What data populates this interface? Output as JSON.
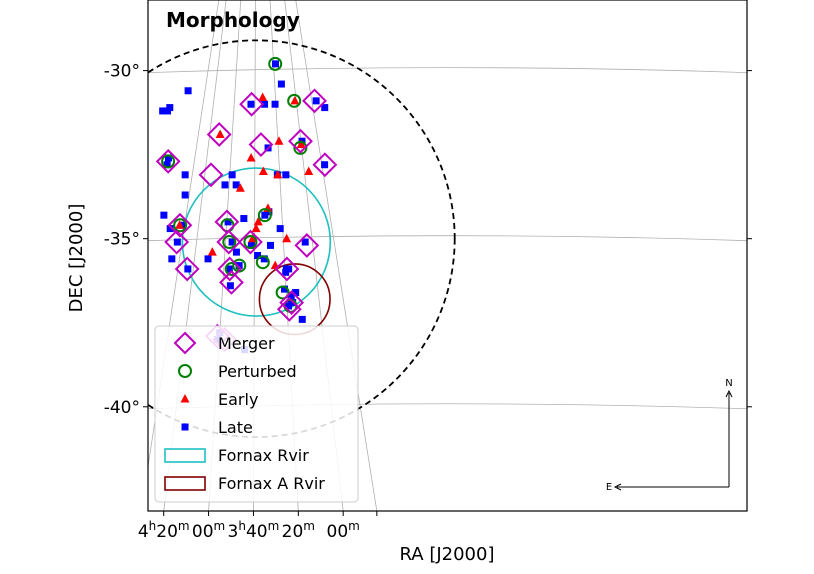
{
  "chart_data": {
    "type": "scatter",
    "title": "Morphology",
    "xlabel": "RA [J2000]",
    "ylabel": "DEC [J2000]",
    "xlim": [
      0.0,
      4.45
    ],
    "ylim": [
      -43.1,
      -27.9
    ],
    "grid": true,
    "x_ticks": [
      {
        "value": 4.3333,
        "label_main": "4",
        "label_sup": "h",
        "label_rest": "20",
        "label_sup2": "m"
      },
      {
        "value": 4.0,
        "label_main": "00",
        "label_sup": "m",
        "label_rest": "",
        "label_sup2": ""
      },
      {
        "value": 3.6667,
        "label_main": "3",
        "label_sup": "h",
        "label_rest": "40",
        "label_sup2": "m"
      },
      {
        "value": 3.3333,
        "label_main": "20",
        "label_sup": "m",
        "label_rest": "",
        "label_sup2": ""
      },
      {
        "value": 3.0,
        "label_main": "00",
        "label_sup": "m",
        "label_rest": "",
        "label_sup2": ""
      }
    ],
    "y_ticks": [
      {
        "value": -30,
        "label": "-30°"
      },
      {
        "value": -35,
        "label": "-35°"
      },
      {
        "value": -40,
        "label": "-40°"
      }
    ],
    "compass": {
      "north": "N",
      "east": "E"
    },
    "legend": {
      "position": "bottom-left",
      "entries": [
        {
          "label": "Merger",
          "marker": "diamond",
          "color": "#bf00bf"
        },
        {
          "label": "Perturbed",
          "marker": "circle",
          "color": "#008000"
        },
        {
          "label": "Early",
          "marker": "triangle",
          "color": "#ff0000"
        },
        {
          "label": "Late",
          "marker": "square",
          "color": "#0000ff"
        },
        {
          "label": "Fornax Rvir",
          "marker": "circle-patch",
          "color": "#20c0c0"
        },
        {
          "label": "Fornax A Rvir",
          "marker": "circle-patch",
          "color": "#800000"
        }
      ]
    },
    "regions": [
      {
        "name": "Fornax Rvir",
        "center": [
          3.645,
          -35.1
        ],
        "radius_deg": 2.2,
        "color": "#20c0c0",
        "style": "solid"
      },
      {
        "name": "Fornax A Rvir",
        "center": [
          3.36,
          -36.8
        ],
        "radius_deg": 1.05,
        "color": "#800000",
        "style": "solid"
      },
      {
        "name": "outer boundary",
        "center": [
          3.645,
          -35.0
        ],
        "radius_deg": 5.9,
        "color": "#000000",
        "style": "dashed"
      }
    ],
    "series": [
      {
        "name": "Late",
        "marker": "square",
        "color": "#0000ff",
        "points": [
          [
            4.341,
            -31.2
          ],
          [
            4.305,
            -31.2
          ],
          [
            4.288,
            -31.1
          ],
          [
            4.152,
            -30.6
          ],
          [
            4.308,
            -32.8
          ],
          [
            4.298,
            -32.6
          ],
          [
            4.332,
            -34.3
          ],
          [
            4.285,
            -34.7
          ],
          [
            4.273,
            -35.6
          ],
          [
            4.232,
            -35.1
          ],
          [
            4.195,
            -34.6
          ],
          [
            4.174,
            -33.7
          ],
          [
            4.174,
            -33.1
          ],
          [
            4.154,
            -35.9
          ],
          [
            4.004,
            -35.6
          ],
          [
            3.878,
            -33.4
          ],
          [
            3.825,
            -33.1
          ],
          [
            3.795,
            -33.4
          ],
          [
            3.855,
            -34.5
          ],
          [
            3.825,
            -35.1
          ],
          [
            3.793,
            -35.4
          ],
          [
            3.773,
            -35.8
          ],
          [
            3.846,
            -35.9
          ],
          [
            3.838,
            -36.4
          ],
          [
            3.738,
            -34.4
          ],
          [
            3.682,
            -35.2
          ],
          [
            3.685,
            -31.0
          ],
          [
            3.584,
            -31.0
          ],
          [
            3.506,
            -31.0
          ],
          [
            3.459,
            -30.4
          ],
          [
            3.558,
            -32.3
          ],
          [
            3.552,
            -34.2
          ],
          [
            3.582,
            -34.3
          ],
          [
            3.54,
            -35.2
          ],
          [
            3.468,
            -34.7
          ],
          [
            3.586,
            -35.6
          ],
          [
            3.636,
            -35.5
          ],
          [
            3.489,
            -33.1
          ],
          [
            3.426,
            -33.1
          ],
          [
            3.503,
            -29.8
          ],
          [
            3.436,
            -36.5
          ],
          [
            3.427,
            -36.0
          ],
          [
            3.422,
            -35.9
          ],
          [
            3.405,
            -35.9
          ],
          [
            3.387,
            -36.7
          ],
          [
            3.387,
            -36.8
          ],
          [
            3.375,
            -36.9
          ],
          [
            3.353,
            -36.6
          ],
          [
            3.406,
            -37.0
          ],
          [
            3.304,
            -37.4
          ],
          [
            3.306,
            -32.1
          ],
          [
            3.282,
            -35.1
          ],
          [
            3.201,
            -30.9
          ],
          [
            3.137,
            -31.1
          ],
          [
            3.138,
            -32.8
          ],
          [
            3.732,
            -38.3
          ],
          [
            3.934,
            -38.0
          ],
          [
            3.917,
            -37.8
          ]
        ]
      },
      {
        "name": "Early",
        "marker": "triangle",
        "color": "#ff0000",
        "points": [
          [
            4.215,
            -34.6
          ],
          [
            3.972,
            -35.4
          ],
          [
            3.914,
            -31.9
          ],
          [
            3.764,
            -33.5
          ],
          [
            3.684,
            -32.6
          ],
          [
            3.673,
            -35.0
          ],
          [
            3.647,
            -34.7
          ],
          [
            3.631,
            -34.5
          ],
          [
            3.598,
            -30.8
          ],
          [
            3.593,
            -33.0
          ],
          [
            3.559,
            -34.1
          ],
          [
            3.505,
            -35.8
          ],
          [
            3.486,
            -33.1
          ],
          [
            3.477,
            -32.1
          ],
          [
            3.42,
            -35.0
          ],
          [
            3.359,
            -30.9
          ],
          [
            3.312,
            -32.2
          ],
          [
            3.256,
            -33.0
          ]
        ]
      },
      {
        "name": "Perturbed",
        "marker": "circle",
        "color": "#008000",
        "points": [
          [
            4.301,
            -32.7
          ],
          [
            4.211,
            -34.6
          ],
          [
            3.86,
            -34.6
          ],
          [
            3.846,
            -35.1
          ],
          [
            3.828,
            -35.9
          ],
          [
            3.772,
            -35.8
          ],
          [
            3.689,
            -35.1
          ],
          [
            3.597,
            -35.7
          ],
          [
            3.582,
            -34.3
          ],
          [
            3.505,
            -29.8
          ],
          [
            3.45,
            -36.6
          ],
          [
            3.364,
            -30.9
          ],
          [
            3.318,
            -32.3
          ],
          [
            3.392,
            -37.0
          ]
        ]
      },
      {
        "name": "Merger",
        "marker": "diamond",
        "color": "#bf00bf",
        "points": [
          [
            4.3,
            -32.7
          ],
          [
            4.237,
            -35.1
          ],
          [
            4.213,
            -34.6
          ],
          [
            4.159,
            -35.9
          ],
          [
            3.982,
            -33.1
          ],
          [
            3.921,
            -31.9
          ],
          [
            3.864,
            -34.5
          ],
          [
            3.85,
            -35.1
          ],
          [
            3.843,
            -35.9
          ],
          [
            3.83,
            -36.3
          ],
          [
            3.689,
            -35.1
          ],
          [
            3.68,
            -31.0
          ],
          [
            3.611,
            -32.2
          ],
          [
            3.418,
            -35.9
          ],
          [
            3.4,
            -37.1
          ],
          [
            3.383,
            -36.9
          ],
          [
            3.317,
            -32.1
          ],
          [
            3.27,
            -35.2
          ],
          [
            3.213,
            -30.9
          ],
          [
            3.136,
            -32.8
          ],
          [
            3.935,
            -37.9
          ],
          [
            3.88,
            -38.0
          ]
        ]
      }
    ]
  }
}
